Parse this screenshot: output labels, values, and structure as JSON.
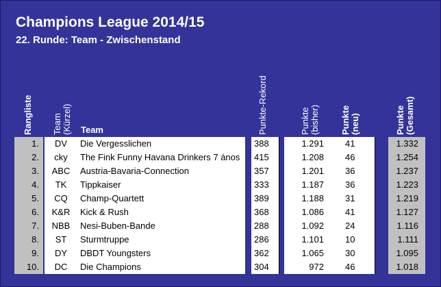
{
  "title": "Champions League 2014/15",
  "subtitle": "22. Runde: Team - Zwischenstand",
  "headers": {
    "rank": "Rangliste",
    "abbr": "Team (Kürzel)",
    "team": "Team",
    "record": "Punkte-Rekord",
    "previous": "Punkte (bisher)",
    "new": "Punkte (neu)",
    "total": "Punkte (Gesamt)"
  },
  "rows": [
    {
      "rank": "1.",
      "abbr": "DV",
      "team": "Die Vergesslichen",
      "record": "388",
      "previous": "1.291",
      "new": "41",
      "total": "1.332"
    },
    {
      "rank": "2.",
      "abbr": "cky",
      "team": "The Fink Funny Havana Drinkers 7 ános",
      "record": "415",
      "previous": "1.208",
      "new": "46",
      "total": "1.254"
    },
    {
      "rank": "3.",
      "abbr": "ABC",
      "team": "Austria-Bavaria-Connection",
      "record": "357",
      "previous": "1.201",
      "new": "36",
      "total": "1.237"
    },
    {
      "rank": "4.",
      "abbr": "TK",
      "team": "Tippkaiser",
      "record": "333",
      "previous": "1.187",
      "new": "36",
      "total": "1.223"
    },
    {
      "rank": "5.",
      "abbr": "CQ",
      "team": "Champ-Quartett",
      "record": "389",
      "previous": "1.188",
      "new": "31",
      "total": "1.219"
    },
    {
      "rank": "6.",
      "abbr": "K&R",
      "team": "Kick & Rush",
      "record": "368",
      "previous": "1.086",
      "new": "41",
      "total": "1.127"
    },
    {
      "rank": "7.",
      "abbr": "NBB",
      "team": "Nesi-Buben-Bande",
      "record": "288",
      "previous": "1.092",
      "new": "24",
      "total": "1.116"
    },
    {
      "rank": "8.",
      "abbr": "ST",
      "team": "Sturmtruppe",
      "record": "286",
      "previous": "1.101",
      "new": "10",
      "total": "1.111"
    },
    {
      "rank": "9.",
      "abbr": "DY",
      "team": "DBDT Youngsters",
      "record": "362",
      "previous": "1.065",
      "new": "30",
      "total": "1.095"
    },
    {
      "rank": "10.",
      "abbr": "DC",
      "team": "Die Champions",
      "record": "304",
      "previous": "972",
      "new": "46",
      "total": "1.018"
    }
  ]
}
